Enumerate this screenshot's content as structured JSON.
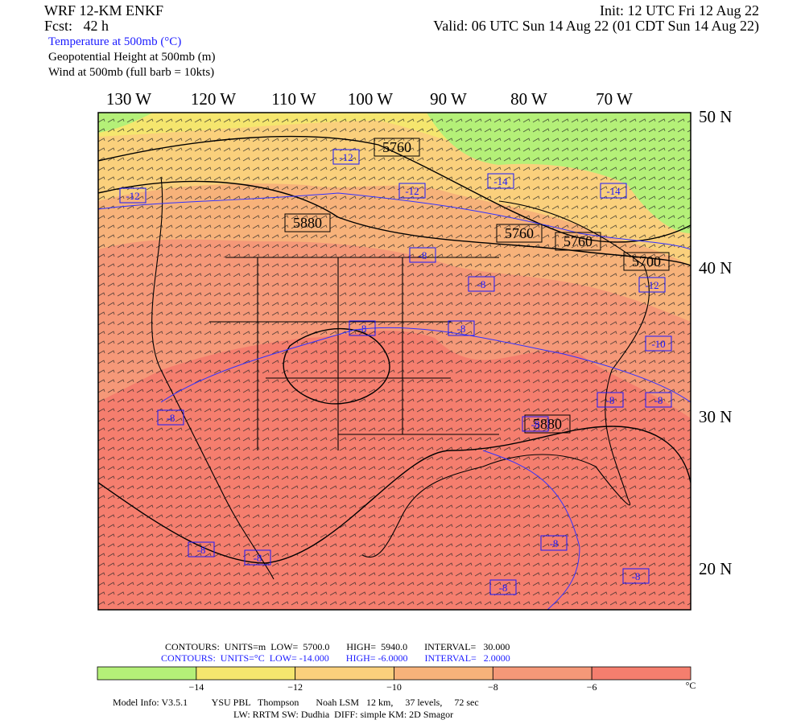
{
  "header": {
    "model": "WRF 12-KM ENKF",
    "forecast": "Fcst:   42 h",
    "init": "Init: 12 UTC Fri 12 Aug 22",
    "valid": "Valid: 06 UTC Sun 14 Aug 22 (01 CDT Sun 14 Aug 22)",
    "fields": [
      "Temperature at 500mb (°C)",
      "Geopotential Height at 500mb (m)",
      "Wind at 500mb (full barb = 10kts)"
    ]
  },
  "map": {
    "longitude_labels": [
      "130 W",
      "120 W",
      "110 W",
      "100 W",
      "90 W",
      "80 W",
      "70 W"
    ],
    "latitude_labels": [
      "50 N",
      "40 N",
      "30 N",
      "20 N"
    ],
    "height_labels": [
      "5760",
      "5880",
      "5760",
      "5760",
      "5700",
      "5880"
    ],
    "temperature_labels": [
      "-12",
      "-12",
      "-12",
      "-14",
      "-14",
      "-8",
      "-8",
      "-12",
      "-8",
      "-8",
      "-10",
      "-8",
      "-8",
      "-8",
      "-8",
      "-8",
      "-8",
      "-8",
      "-8",
      "-8"
    ]
  },
  "footer": {
    "height_contours": "CONTOURS:  UNITS=m  LOW=  5700.0       HIGH=  5940.0       INTERVAL=   30.000",
    "temperature_contours": "CONTOURS:  UNITS=°C  LOW= -14.000       HIGH= -6.0000       INTERVAL=   2.0000",
    "model_info": "Model Info: V3.5.1          YSU PBL   Thompson       Noah LSM   12 km,     37 levels,     72 sec",
    "physics": "LW: RRTM SW: Dudhia  DIFF: simple KM: 2D Smagor"
  },
  "colorbar": {
    "colors": [
      "#b4f078",
      "#f5e66e",
      "#fad07c",
      "#f7b27a",
      "#f59878",
      "#f57e6e"
    ],
    "tick_labels": [
      "−14",
      "−12",
      "−10",
      "−8",
      "−6"
    ],
    "unit": "°C"
  }
}
